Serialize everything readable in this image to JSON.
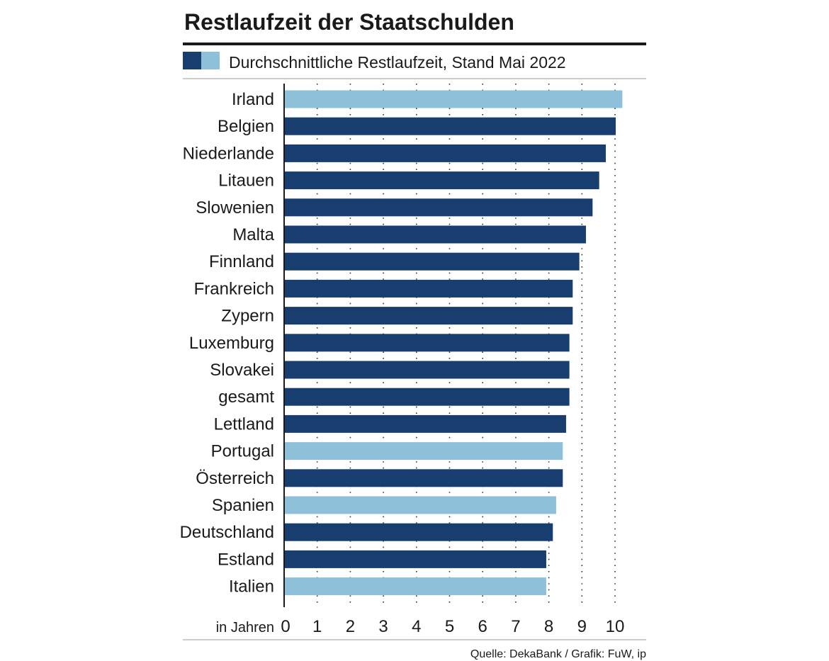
{
  "colors": {
    "dark": "#173e6e",
    "light": "#8ec1d9",
    "rule": "#1a1a1a",
    "thin_rule": "#9a9a9a",
    "grid": "#333333"
  },
  "chart_data": {
    "type": "bar",
    "orientation": "horizontal",
    "title": "Restlaufzeit der Staatschulden",
    "subtitle": "Durchschnittliche Restlaufzeit, Stand Mai 2022",
    "xlabel": "in Jahren",
    "source": "Quelle: DekaBank / Grafik: FuW, ip",
    "xlim": [
      0,
      11
    ],
    "xticks": [
      "0",
      "1",
      "2",
      "3",
      "4",
      "5",
      "6",
      "7",
      "8",
      "9",
      "10"
    ],
    "grid": "vertical dotted",
    "legend": "top-left, two swatches (dark, light)",
    "categories": [
      "Irland",
      "Belgien",
      "Niederlande",
      "Litauen",
      "Slowenien",
      "Malta",
      "Finnland",
      "Frankreich",
      "Zypern",
      "Luxemburg",
      "Slovakei",
      "gesamt",
      "Lettland",
      "Portugal",
      "Österreich",
      "Spanien",
      "Deutschland",
      "Estland",
      "Italien"
    ],
    "values": [
      10.2,
      10.0,
      9.7,
      9.5,
      9.3,
      9.1,
      8.9,
      8.7,
      8.7,
      8.6,
      8.6,
      8.6,
      8.5,
      8.4,
      8.4,
      8.2,
      8.1,
      7.9,
      7.9
    ],
    "highlight": [
      true,
      false,
      false,
      false,
      false,
      false,
      false,
      false,
      false,
      false,
      false,
      false,
      false,
      true,
      false,
      true,
      false,
      false,
      true
    ]
  }
}
